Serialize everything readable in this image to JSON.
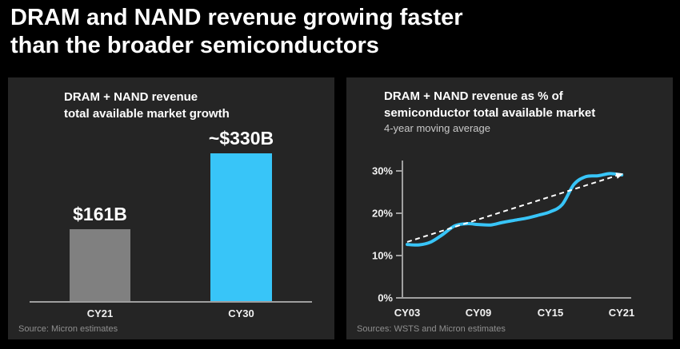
{
  "header": {
    "title_line1": "DRAM and NAND revenue growing faster",
    "title_line2": "than the broader semiconductors"
  },
  "left_panel": {
    "title_line1": "DRAM + NAND revenue",
    "title_line2": "total available market growth",
    "source": "Source: Micron estimates"
  },
  "right_panel": {
    "title_line1": "DRAM + NAND revenue as % of",
    "title_line2": "semiconductor total available market",
    "subtitle": "4-year moving average",
    "source": "Sources: WSTS and Micron estimates"
  },
  "colors": {
    "accent_blue": "#38c5f8",
    "bar_gray": "#808080",
    "panel_bg": "#252525",
    "axis_gray": "#a0a0a0",
    "trend_white": "#ffffff",
    "source_gray": "#8f8f8f"
  },
  "chart_data": [
    {
      "type": "bar",
      "title": "DRAM + NAND revenue total available market growth",
      "categories": [
        "CY21",
        "CY30"
      ],
      "values": [
        161,
        330
      ],
      "value_labels": [
        "$161B",
        "~$330B"
      ],
      "unit": "$B USD",
      "bar_colors": [
        "#808080",
        "#38c5f8"
      ],
      "ylim": [
        0,
        330
      ],
      "grid": false
    },
    {
      "type": "line",
      "title": "DRAM + NAND revenue as % of semiconductor total available market",
      "subtitle": "4-year moving average",
      "x": [
        "CY03",
        "CY04",
        "CY05",
        "CY06",
        "CY07",
        "CY08",
        "CY09",
        "CY10",
        "CY11",
        "CY12",
        "CY13",
        "CY14",
        "CY15",
        "CY16",
        "CY17",
        "CY18",
        "CY19",
        "CY20",
        "CY21"
      ],
      "x_tick_labels": [
        "CY03",
        "CY09",
        "CY15",
        "CY21"
      ],
      "y_tick_labels": [
        "0%",
        "10%",
        "20%",
        "30%"
      ],
      "y_ticks": [
        0,
        10,
        20,
        30
      ],
      "ylim": [
        0,
        33
      ],
      "grid": false,
      "legend": "none",
      "series": [
        {
          "name": "DRAM + NAND share of semiconductor TAM (4-yr moving avg)",
          "color": "#38c5f8",
          "values": [
            12.6,
            12.5,
            13.2,
            15.0,
            17.0,
            17.5,
            17.3,
            17.2,
            17.8,
            18.3,
            18.8,
            19.5,
            20.3,
            22.0,
            26.8,
            28.6,
            28.8,
            29.3,
            29.0
          ]
        }
      ],
      "trend": {
        "style": "dashed-arrow",
        "color": "#ffffff",
        "start_x": "CY03",
        "start_y": 13.2,
        "end_x": "CY21",
        "end_y": 29.2
      }
    }
  ]
}
